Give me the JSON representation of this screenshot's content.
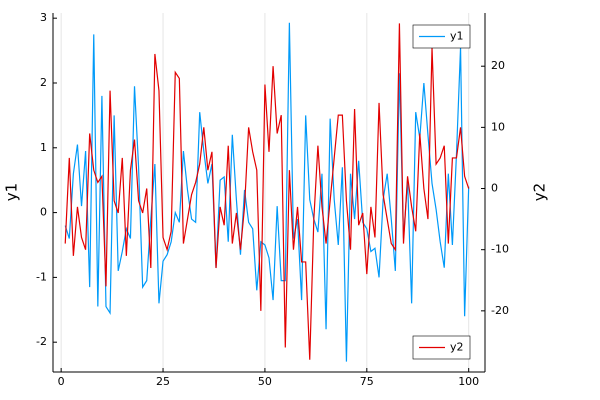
{
  "chart_data": {
    "type": "line",
    "x": [
      1,
      2,
      3,
      4,
      5,
      6,
      7,
      8,
      9,
      10,
      11,
      12,
      13,
      14,
      15,
      16,
      17,
      18,
      19,
      20,
      21,
      22,
      23,
      24,
      25,
      26,
      27,
      28,
      29,
      30,
      31,
      32,
      33,
      34,
      35,
      36,
      37,
      38,
      39,
      40,
      41,
      42,
      43,
      44,
      45,
      46,
      47,
      48,
      49,
      50,
      51,
      52,
      53,
      54,
      55,
      56,
      57,
      58,
      59,
      60,
      61,
      62,
      63,
      64,
      65,
      66,
      67,
      68,
      69,
      70,
      71,
      72,
      73,
      74,
      75,
      76,
      77,
      78,
      79,
      80,
      81,
      82,
      83,
      84,
      85,
      86,
      87,
      88,
      89,
      90,
      91,
      92,
      93,
      94,
      95,
      96,
      97,
      98,
      99,
      100
    ],
    "xlim": [
      -2,
      104
    ],
    "xticks": [
      0,
      25,
      50,
      75,
      100
    ],
    "ylabel": "y1",
    "ylim": [
      -2.46,
      3.08
    ],
    "yticks": [
      -2,
      -1,
      0,
      1,
      2,
      3
    ],
    "y2label": "y2",
    "y2lim": [
      -30,
      28.7
    ],
    "y2ticks": [
      -20,
      -10,
      0,
      10,
      20
    ],
    "grid": "x",
    "series": [
      {
        "name": "y1",
        "color": "#009af9",
        "axis": "y",
        "legend": "top right",
        "values": [
          -0.2,
          -0.4,
          0.6,
          1.05,
          0.1,
          0.95,
          -1.15,
          2.75,
          -1.45,
          1.8,
          -1.45,
          -1.55,
          1.5,
          -0.9,
          -0.6,
          -0.25,
          -0.4,
          1.95,
          0.7,
          -1.15,
          -1.05,
          -0.1,
          0.75,
          -1.4,
          -0.75,
          -0.65,
          -0.45,
          0.0,
          -0.15,
          0.95,
          0.35,
          -0.1,
          -0.15,
          1.55,
          0.95,
          0.45,
          0.75,
          -0.85,
          0.5,
          0.55,
          -0.45,
          1.2,
          0.2,
          -0.65,
          0.35,
          -0.15,
          -0.25,
          -1.2,
          -0.45,
          -0.5,
          -0.7,
          -1.35,
          0.1,
          -1.05,
          -1.05,
          2.93,
          -0.4,
          -0.1,
          -1.35,
          1.5,
          0.2,
          -0.1,
          -0.3,
          0.6,
          -1.8,
          1.45,
          0.2,
          -0.5,
          0.7,
          -2.3,
          0.6,
          -0.1,
          0.8,
          -0.15,
          -0.25,
          -0.6,
          -0.55,
          -1.0,
          0.2,
          0.6,
          -0.1,
          -0.9,
          2.15,
          -0.4,
          0.5,
          -1.4,
          1.55,
          1.15,
          2.0,
          1.2,
          0.45,
          0.05,
          -0.45,
          -0.85,
          0.6,
          -0.5,
          0.9,
          2.55,
          -1.6,
          0.4
        ]
      },
      {
        "name": "y2",
        "color": "#e20000",
        "axis": "y2",
        "legend": "bottom right",
        "values": [
          -9,
          5,
          -11,
          -3,
          -8,
          -10,
          9,
          3,
          1,
          2,
          -16,
          16,
          -2,
          -4,
          5,
          -11,
          3,
          8,
          -2,
          -4,
          0,
          -13,
          22,
          16,
          -8,
          -10,
          -7,
          19,
          18,
          -9,
          -5,
          -1,
          1,
          4,
          10,
          3,
          6,
          -13,
          -3,
          -6,
          7,
          -9,
          -4,
          -10,
          -3,
          10,
          6,
          3,
          -20,
          17,
          6,
          20,
          9,
          12,
          -26,
          3,
          -10,
          -3,
          -12,
          -12,
          -28,
          -5,
          7,
          -3,
          -9,
          -2,
          5,
          12,
          12,
          -2,
          -10,
          13,
          -6,
          -4,
          -14,
          -3,
          -8,
          14,
          -1,
          -5,
          -9,
          -10,
          27,
          -9,
          2,
          -3,
          -7,
          9,
          0,
          -5,
          23,
          4,
          5,
          7,
          -9,
          5,
          5,
          10,
          2,
          0
        ]
      }
    ]
  }
}
